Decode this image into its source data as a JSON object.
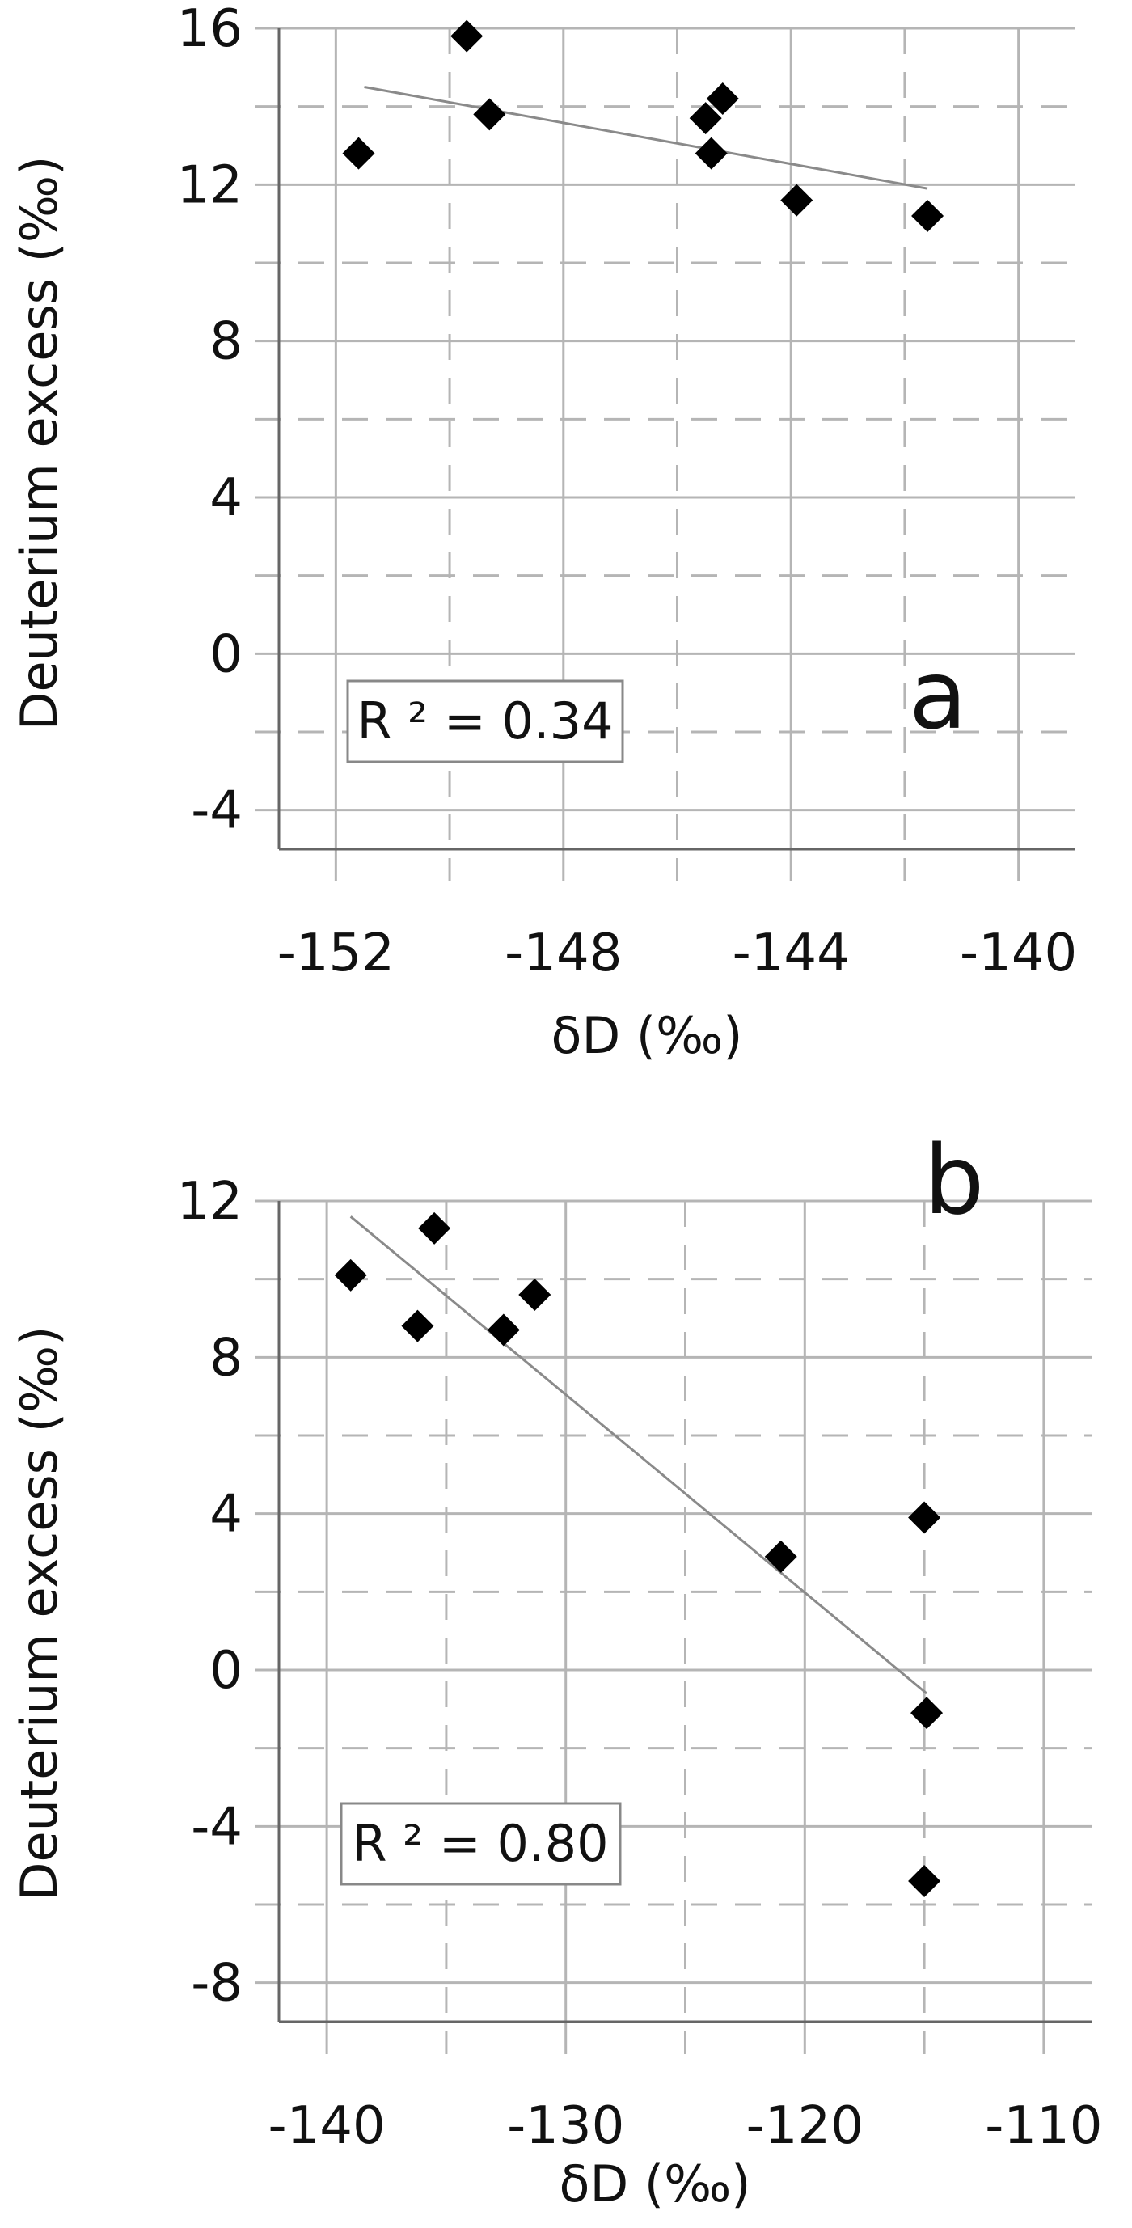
{
  "chart_data": [
    {
      "type": "scatter",
      "panel_label": "a",
      "xlabel": "δD (‰)",
      "ylabel": "Deuterium excess (‰)",
      "xlim": [
        -153,
        -139
      ],
      "ylim": [
        -5,
        16
      ],
      "x_ticks": [
        -152,
        -148,
        -144,
        -140
      ],
      "y_ticks": [
        16,
        12,
        8,
        4,
        0,
        -4
      ],
      "grid": true,
      "points": [
        {
          "x": -151.6,
          "y": 12.8
        },
        {
          "x": -149.7,
          "y": 15.8
        },
        {
          "x": -149.3,
          "y": 13.8
        },
        {
          "x": -145.5,
          "y": 13.7
        },
        {
          "x": -145.2,
          "y": 14.2
        },
        {
          "x": -145.4,
          "y": 12.8
        },
        {
          "x": -143.9,
          "y": 11.6
        },
        {
          "x": -141.6,
          "y": 11.2
        }
      ],
      "trendline": {
        "x": [
          -151.5,
          -141.6
        ],
        "y": [
          14.5,
          11.9
        ]
      },
      "annotation": "R ² = 0.34",
      "colors": {
        "marker": "#000000",
        "trendline": "#8a8a8a",
        "grid": "#b5b5b5"
      }
    },
    {
      "type": "scatter",
      "panel_label": "b",
      "xlabel": "δD (‰)",
      "ylabel": "Deuterium excess (‰)",
      "xlim": [
        -142,
        -108
      ],
      "ylim": [
        -9,
        12
      ],
      "x_ticks": [
        -140,
        -130,
        -120,
        -110
      ],
      "y_ticks": [
        12,
        8,
        4,
        0,
        -4,
        -8
      ],
      "grid": true,
      "points": [
        {
          "x": -139.0,
          "y": 10.1
        },
        {
          "x": -136.2,
          "y": 8.8
        },
        {
          "x": -135.5,
          "y": 11.3
        },
        {
          "x": -132.6,
          "y": 8.7
        },
        {
          "x": -131.3,
          "y": 9.6
        },
        {
          "x": -121.0,
          "y": 2.9
        },
        {
          "x": -115.0,
          "y": 3.9
        },
        {
          "x": -114.9,
          "y": -1.1
        },
        {
          "x": -115.0,
          "y": -5.4
        }
      ],
      "trendline": {
        "x": [
          -139.0,
          -114.9
        ],
        "y": [
          11.6,
          -0.6
        ]
      },
      "annotation": "R ² = 0.80",
      "colors": {
        "marker": "#000000",
        "trendline": "#8a8a8a",
        "grid": "#b5b5b5"
      }
    }
  ]
}
